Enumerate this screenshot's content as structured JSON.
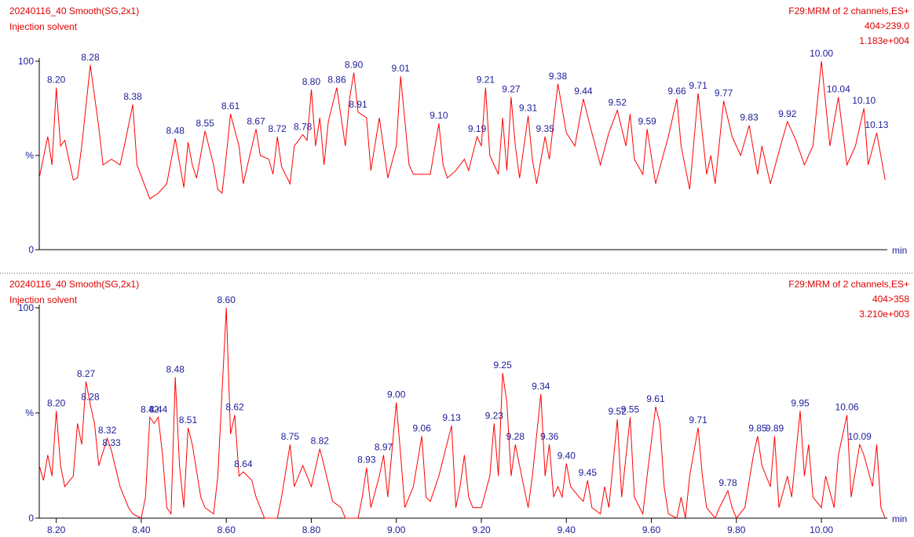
{
  "chart_data": [
    {
      "type": "line",
      "title": "20240116_40 Smooth(SG,2x1)",
      "subtitle": "Injection solvent",
      "channel": "F29:MRM of 2 channels,ES+",
      "transition": "404>239.0",
      "intensity": "1.183e+004",
      "x_label": "min",
      "color": "#ff0000",
      "xlim": [
        8.16,
        10.155
      ],
      "ylim": [
        0,
        100
      ],
      "yticks": [
        0,
        {
          "value": 50,
          "label": "%"
        },
        100
      ],
      "x": [
        8.16,
        8.18,
        8.19,
        8.2,
        8.21,
        8.22,
        8.24,
        8.25,
        8.26,
        8.28,
        8.3,
        8.31,
        8.33,
        8.35,
        8.36,
        8.38,
        8.39,
        8.41,
        8.42,
        8.44,
        8.46,
        8.48,
        8.5,
        8.51,
        8.52,
        8.53,
        8.55,
        8.57,
        8.58,
        8.59,
        8.6,
        8.61,
        8.63,
        8.64,
        8.65,
        8.67,
        8.68,
        8.7,
        8.71,
        8.72,
        8.73,
        8.75,
        8.76,
        8.78,
        8.79,
        8.8,
        8.81,
        8.82,
        8.83,
        8.84,
        8.86,
        8.88,
        8.89,
        8.9,
        8.91,
        8.93,
        8.94,
        8.96,
        8.98,
        9.0,
        9.01,
        9.03,
        9.04,
        9.06,
        9.08,
        9.1,
        9.11,
        9.12,
        9.14,
        9.16,
        9.17,
        9.19,
        9.2,
        9.21,
        9.22,
        9.24,
        9.25,
        9.26,
        9.27,
        9.28,
        9.29,
        9.31,
        9.32,
        9.33,
        9.35,
        9.36,
        9.38,
        9.4,
        9.42,
        9.44,
        9.46,
        9.48,
        9.5,
        9.52,
        9.54,
        9.55,
        9.56,
        9.58,
        9.59,
        9.61,
        9.63,
        9.64,
        9.66,
        9.67,
        9.69,
        9.71,
        9.73,
        9.74,
        9.75,
        9.77,
        9.79,
        9.81,
        9.83,
        9.85,
        9.86,
        9.88,
        9.9,
        9.92,
        9.94,
        9.96,
        9.98,
        10.0,
        10.02,
        10.04,
        10.06,
        10.08,
        10.1,
        10.11,
        10.13,
        10.15
      ],
      "values": [
        38,
        60,
        45,
        86,
        55,
        58,
        37,
        38,
        55,
        98,
        65,
        45,
        48,
        45,
        55,
        77,
        45,
        33,
        27,
        30,
        35,
        59,
        33,
        57,
        45,
        38,
        63,
        45,
        32,
        30,
        50,
        72,
        55,
        35,
        45,
        64,
        50,
        48,
        40,
        60,
        44,
        35,
        55,
        61,
        58,
        85,
        55,
        70,
        45,
        68,
        86,
        55,
        80,
        94,
        73,
        70,
        42,
        70,
        38,
        55,
        92,
        45,
        40,
        40,
        40,
        67,
        45,
        38,
        42,
        48,
        42,
        60,
        55,
        86,
        50,
        40,
        70,
        42,
        81,
        55,
        38,
        71,
        48,
        35,
        60,
        48,
        88,
        62,
        55,
        80,
        62,
        45,
        62,
        74,
        55,
        72,
        48,
        40,
        64,
        35,
        52,
        60,
        80,
        55,
        32,
        83,
        40,
        50,
        35,
        79,
        60,
        50,
        66,
        40,
        55,
        35,
        52,
        68,
        58,
        45,
        55,
        100,
        55,
        81,
        45,
        55,
        75,
        45,
        62,
        37
      ],
      "peaks": [
        {
          "x": 8.2,
          "label": "8.20",
          "value": 86
        },
        {
          "x": 8.28,
          "label": "8.28",
          "value": 98
        },
        {
          "x": 8.38,
          "label": "8.38",
          "value": 77
        },
        {
          "x": 8.48,
          "label": "8.48",
          "value": 59
        },
        {
          "x": 8.55,
          "label": "8.55",
          "value": 63
        },
        {
          "x": 8.61,
          "label": "8.61",
          "value": 72
        },
        {
          "x": 8.67,
          "label": "8.67",
          "value": 64
        },
        {
          "x": 8.72,
          "label": "8.72",
          "value": 60
        },
        {
          "x": 8.78,
          "label": "8.78",
          "value": 61
        },
        {
          "x": 8.8,
          "label": "8.80",
          "value": 85
        },
        {
          "x": 8.86,
          "label": "8.86",
          "value": 86
        },
        {
          "x": 8.9,
          "label": "8.90",
          "value": 94
        },
        {
          "x": 8.91,
          "label": "8.91",
          "value": 73
        },
        {
          "x": 9.01,
          "label": "9.01",
          "value": 92
        },
        {
          "x": 9.1,
          "label": "9.10",
          "value": 67
        },
        {
          "x": 9.19,
          "label": "9.19",
          "value": 60
        },
        {
          "x": 9.21,
          "label": "9.21",
          "value": 86
        },
        {
          "x": 9.27,
          "label": "9.27",
          "value": 81
        },
        {
          "x": 9.31,
          "label": "9.31",
          "value": 71
        },
        {
          "x": 9.35,
          "label": "9.35",
          "value": 60
        },
        {
          "x": 9.38,
          "label": "9.38",
          "value": 88
        },
        {
          "x": 9.44,
          "label": "9.44",
          "value": 80
        },
        {
          "x": 9.52,
          "label": "9.52",
          "value": 74
        },
        {
          "x": 9.59,
          "label": "9.59",
          "value": 64
        },
        {
          "x": 9.66,
          "label": "9.66",
          "value": 80
        },
        {
          "x": 9.71,
          "label": "9.71",
          "value": 83
        },
        {
          "x": 9.77,
          "label": "9.77",
          "value": 79
        },
        {
          "x": 9.83,
          "label": "9.83",
          "value": 66
        },
        {
          "x": 9.92,
          "label": "9.92",
          "value": 68
        },
        {
          "x": 10.0,
          "label": "10.00",
          "value": 100
        },
        {
          "x": 10.04,
          "label": "10.04",
          "value": 81
        },
        {
          "x": 10.1,
          "label": "10.10",
          "value": 75
        },
        {
          "x": 10.13,
          "label": "10.13",
          "value": 62
        }
      ]
    },
    {
      "type": "line",
      "title": "20240116_40 Smooth(SG,2x1)",
      "subtitle": "Injection solvent",
      "channel": "F29:MRM of 2 channels,ES+",
      "transition": "404>358",
      "intensity": "3.210e+003",
      "x_label": "min",
      "color": "#ff0000",
      "xlim": [
        8.16,
        10.155
      ],
      "ylim": [
        0,
        100
      ],
      "yticks": [
        0,
        {
          "value": 50,
          "label": "%"
        },
        100
      ],
      "xticks": [
        {
          "value": 8.2,
          "label": "8.20"
        },
        {
          "value": 8.4,
          "label": "8.40"
        },
        {
          "value": 8.6,
          "label": "8.60"
        },
        {
          "value": 8.8,
          "label": "8.80"
        },
        {
          "value": 9.0,
          "label": "9.00"
        },
        {
          "value": 9.2,
          "label": "9.20"
        },
        {
          "value": 9.4,
          "label": "9.40"
        },
        {
          "value": 9.6,
          "label": "9.60"
        },
        {
          "value": 9.8,
          "label": "9.80"
        },
        {
          "value": 10.0,
          "label": "10.00"
        }
      ],
      "x": [
        8.16,
        8.17,
        8.18,
        8.19,
        8.2,
        8.21,
        8.22,
        8.24,
        8.25,
        8.26,
        8.27,
        8.28,
        8.29,
        8.3,
        8.32,
        8.33,
        8.35,
        8.37,
        8.38,
        8.4,
        8.41,
        8.42,
        8.43,
        8.44,
        8.45,
        8.46,
        8.47,
        8.48,
        8.49,
        8.5,
        8.51,
        8.52,
        8.54,
        8.55,
        8.57,
        8.58,
        8.6,
        8.61,
        8.62,
        8.63,
        8.64,
        8.66,
        8.67,
        8.69,
        8.72,
        8.73,
        8.75,
        8.76,
        8.78,
        8.79,
        8.8,
        8.82,
        8.83,
        8.85,
        8.87,
        8.88,
        8.91,
        8.92,
        8.93,
        8.94,
        8.96,
        8.97,
        8.98,
        9.0,
        9.01,
        9.02,
        9.04,
        9.06,
        9.07,
        9.08,
        9.1,
        9.13,
        9.14,
        9.15,
        9.16,
        9.17,
        9.18,
        9.2,
        9.22,
        9.23,
        9.24,
        9.25,
        9.26,
        9.27,
        9.28,
        9.3,
        9.31,
        9.32,
        9.34,
        9.35,
        9.36,
        9.37,
        9.38,
        9.39,
        9.4,
        9.41,
        9.43,
        9.44,
        9.45,
        9.46,
        9.48,
        9.49,
        9.5,
        9.52,
        9.53,
        9.55,
        9.56,
        9.58,
        9.59,
        9.61,
        9.62,
        9.63,
        9.64,
        9.66,
        9.67,
        9.68,
        9.69,
        9.71,
        9.72,
        9.73,
        9.75,
        9.76,
        9.78,
        9.79,
        9.8,
        9.82,
        9.84,
        9.85,
        9.86,
        9.88,
        9.89,
        9.9,
        9.92,
        9.93,
        9.95,
        9.96,
        9.97,
        9.98,
        10.0,
        10.01,
        10.03,
        10.04,
        10.06,
        10.07,
        10.09,
        10.1,
        10.12,
        10.13,
        10.14,
        10.15
      ],
      "values": [
        25,
        18,
        30,
        20,
        51,
        25,
        15,
        20,
        45,
        35,
        65,
        54,
        45,
        25,
        38,
        32,
        15,
        5,
        2,
        0,
        10,
        48,
        45,
        48,
        30,
        5,
        2,
        67,
        25,
        5,
        43,
        35,
        10,
        5,
        2,
        20,
        100,
        40,
        49,
        20,
        22,
        18,
        10,
        0,
        0,
        10,
        35,
        15,
        25,
        20,
        15,
        33,
        25,
        8,
        5,
        0,
        0,
        10,
        24,
        5,
        20,
        30,
        10,
        55,
        30,
        5,
        15,
        39,
        10,
        8,
        20,
        44,
        5,
        15,
        30,
        10,
        5,
        5,
        20,
        45,
        20,
        69,
        55,
        20,
        35,
        15,
        5,
        20,
        59,
        20,
        35,
        10,
        15,
        10,
        26,
        15,
        10,
        8,
        18,
        5,
        2,
        15,
        5,
        47,
        10,
        48,
        10,
        2,
        20,
        53,
        45,
        15,
        2,
        0,
        10,
        0,
        20,
        43,
        20,
        5,
        0,
        5,
        13,
        5,
        0,
        5,
        30,
        39,
        25,
        15,
        39,
        5,
        20,
        10,
        51,
        20,
        35,
        10,
        5,
        20,
        5,
        30,
        49,
        10,
        35,
        30,
        15,
        35,
        5,
        0
      ],
      "peaks": [
        {
          "x": 8.2,
          "label": "8.20",
          "value": 51
        },
        {
          "x": 8.27,
          "label": "8.27",
          "value": 65
        },
        {
          "x": 8.28,
          "label": "8.28",
          "value": 54
        },
        {
          "x": 8.32,
          "label": "8.32",
          "value": 38
        },
        {
          "x": 8.33,
          "label": "8.33",
          "value": 32
        },
        {
          "x": 8.42,
          "label": "8.42",
          "value": 48
        },
        {
          "x": 8.44,
          "label": "8.44",
          "value": 48
        },
        {
          "x": 8.48,
          "label": "8.48",
          "value": 67
        },
        {
          "x": 8.51,
          "label": "8.51",
          "value": 43
        },
        {
          "x": 8.6,
          "label": "8.60",
          "value": 100
        },
        {
          "x": 8.62,
          "label": "8.62",
          "value": 49
        },
        {
          "x": 8.64,
          "label": "8.64",
          "value": 22
        },
        {
          "x": 8.75,
          "label": "8.75",
          "value": 35
        },
        {
          "x": 8.82,
          "label": "8.82",
          "value": 33
        },
        {
          "x": 8.93,
          "label": "8.93",
          "value": 24
        },
        {
          "x": 8.97,
          "label": "8.97",
          "value": 30
        },
        {
          "x": 9.0,
          "label": "9.00",
          "value": 55
        },
        {
          "x": 9.06,
          "label": "9.06",
          "value": 39
        },
        {
          "x": 9.13,
          "label": "9.13",
          "value": 44
        },
        {
          "x": 9.23,
          "label": "9.23",
          "value": 45
        },
        {
          "x": 9.25,
          "label": "9.25",
          "value": 69
        },
        {
          "x": 9.28,
          "label": "9.28",
          "value": 35
        },
        {
          "x": 9.34,
          "label": "9.34",
          "value": 59
        },
        {
          "x": 9.36,
          "label": "9.36",
          "value": 35
        },
        {
          "x": 9.4,
          "label": "9.40",
          "value": 26
        },
        {
          "x": 9.45,
          "label": "9.45",
          "value": 18
        },
        {
          "x": 9.52,
          "label": "9.52",
          "value": 47
        },
        {
          "x": 9.55,
          "label": "9.55",
          "value": 48
        },
        {
          "x": 9.61,
          "label": "9.61",
          "value": 53
        },
        {
          "x": 9.71,
          "label": "9.71",
          "value": 43
        },
        {
          "x": 9.78,
          "label": "9.78",
          "value": 13
        },
        {
          "x": 9.85,
          "label": "9.85",
          "value": 39
        },
        {
          "x": 9.89,
          "label": "9.89",
          "value": 39
        },
        {
          "x": 9.95,
          "label": "9.95",
          "value": 51
        },
        {
          "x": 10.06,
          "label": "10.06",
          "value": 49
        },
        {
          "x": 10.09,
          "label": "10.09",
          "value": 35
        }
      ]
    }
  ]
}
